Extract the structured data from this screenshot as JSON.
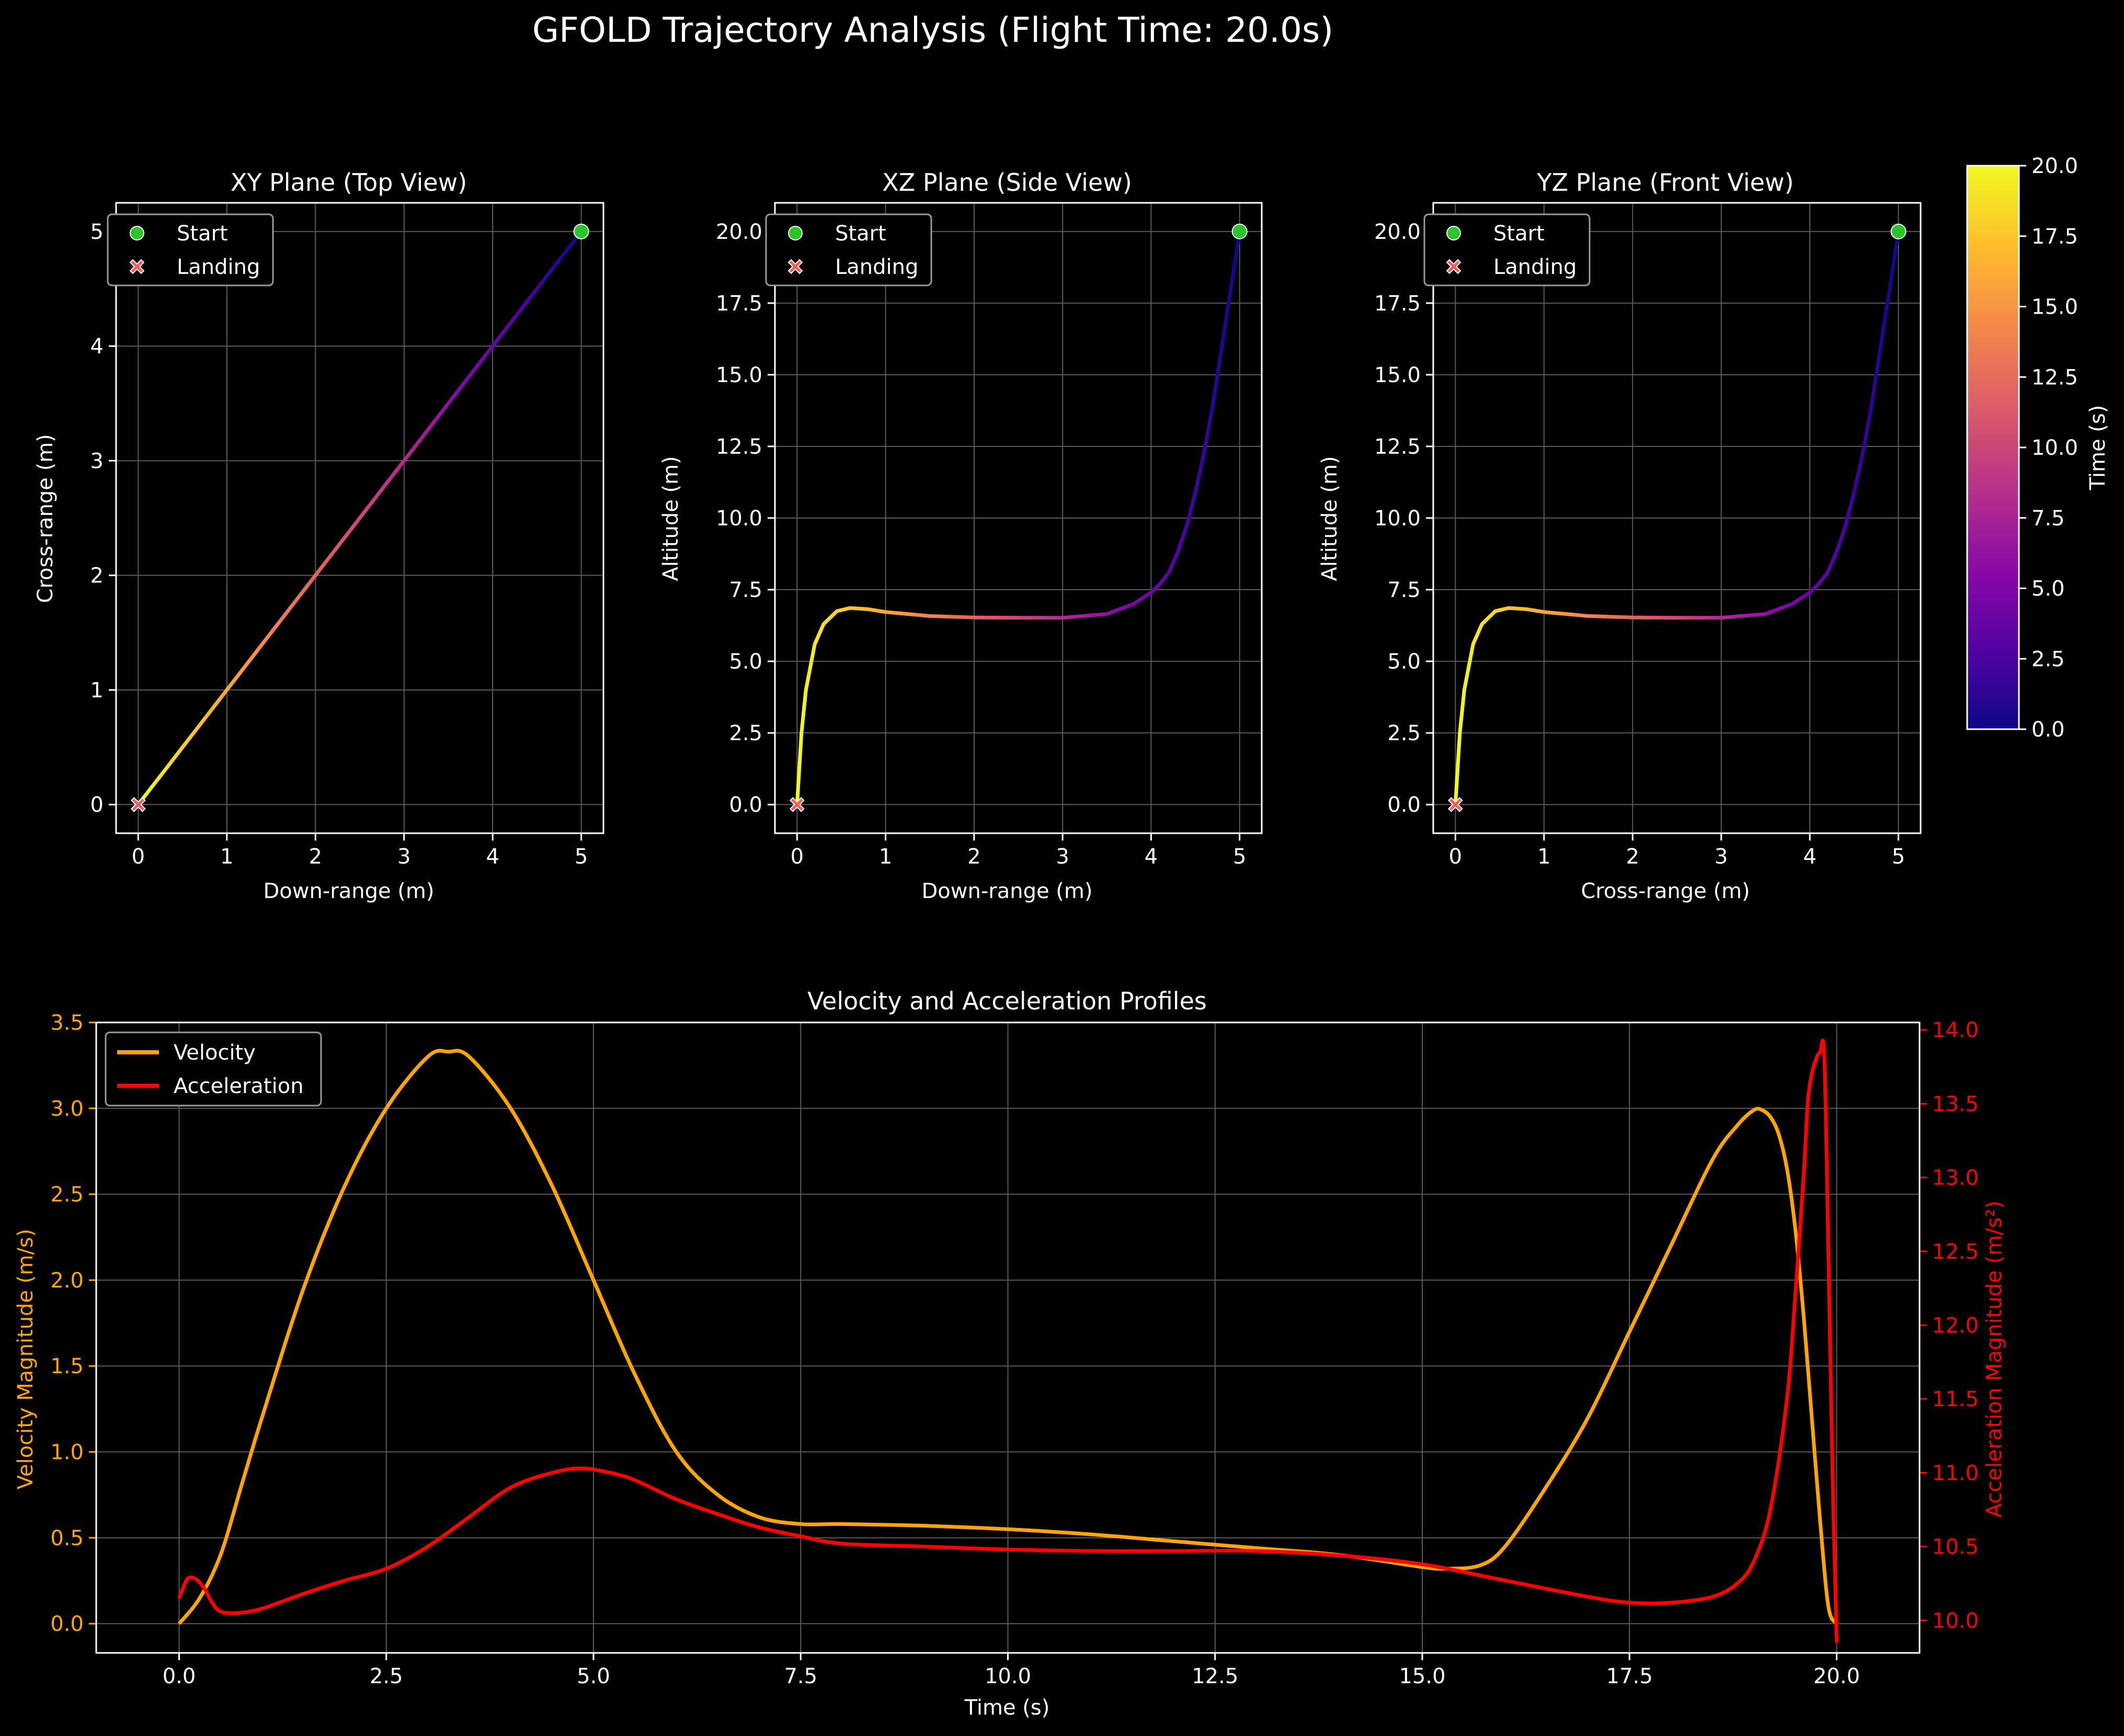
{
  "figure": {
    "title": "GFOLD Trajectory Analysis (Flight Time: 20.0s)",
    "background": "#000000",
    "text_color": "#ffffff",
    "grid_color": "#5a5a5a"
  },
  "legend_top": {
    "start_label": "Start",
    "landing_label": "Landing",
    "start_color": "#2bc42b",
    "landing_color": "#ff5a5a"
  },
  "colorbar": {
    "label": "Time (s)",
    "range": [
      0.0,
      20.0
    ],
    "ticks": [
      "0.0",
      "2.5",
      "5.0",
      "7.5",
      "10.0",
      "12.5",
      "15.0",
      "17.5",
      "20.0"
    ],
    "colormap": "plasma",
    "colors": [
      "#0d0887",
      "#5302a3",
      "#8b0aa5",
      "#b83289",
      "#db5c68",
      "#f48849",
      "#febd2a",
      "#f0f921"
    ]
  },
  "chart_data": [
    {
      "type": "line",
      "title": "XY Plane (Top View)",
      "xlabel": "Down-range (m)",
      "ylabel": "Cross-range (m)",
      "xlim": [
        -0.25,
        5.25
      ],
      "ylim": [
        -0.25,
        5.25
      ],
      "xticks": [
        0,
        1,
        2,
        3,
        4,
        5
      ],
      "yticks": [
        0,
        1,
        2,
        3,
        4,
        5
      ],
      "xtick_labels": [
        "0",
        "1",
        "2",
        "3",
        "4",
        "5"
      ],
      "ytick_labels": [
        "0",
        "1",
        "2",
        "3",
        "4",
        "5"
      ],
      "grid": true,
      "legend": "top-left",
      "color_by": "time",
      "trajectory": {
        "x": [
          5.0,
          4.0,
          3.0,
          2.0,
          1.0,
          0.0
        ],
        "y": [
          5.0,
          4.0,
          3.0,
          2.0,
          1.0,
          0.0
        ],
        "t": [
          0,
          4,
          8,
          12,
          16,
          20
        ]
      },
      "start": [
        5,
        5
      ],
      "landing": [
        0,
        0
      ]
    },
    {
      "type": "line",
      "title": "XZ Plane (Side View)",
      "xlabel": "Down-range (m)",
      "ylabel": "Altitude (m)",
      "xlim": [
        -0.25,
        5.25
      ],
      "ylim": [
        -1.0,
        21.0
      ],
      "xticks": [
        0,
        1,
        2,
        3,
        4,
        5
      ],
      "yticks": [
        0,
        2.5,
        5,
        7.5,
        10,
        12.5,
        15,
        17.5,
        20
      ],
      "xtick_labels": [
        "0",
        "1",
        "2",
        "3",
        "4",
        "5"
      ],
      "ytick_labels": [
        "0.0",
        "2.5",
        "5.0",
        "7.5",
        "10.0",
        "12.5",
        "15.0",
        "17.5",
        "20.0"
      ],
      "grid": true,
      "legend": "top-left",
      "color_by": "time",
      "trajectory": {
        "x": [
          5.0,
          4.9,
          4.8,
          4.7,
          4.6,
          4.5,
          4.4,
          4.3,
          4.2,
          4.1,
          4.0,
          3.8,
          3.5,
          3.0,
          2.5,
          2.0,
          1.5,
          1.0,
          0.8,
          0.6,
          0.45,
          0.3,
          0.2,
          0.1,
          0.05,
          0.0
        ],
        "y": [
          20.0,
          18.0,
          16.0,
          14.0,
          12.3,
          10.9,
          9.7,
          8.8,
          8.1,
          7.7,
          7.4,
          7.0,
          6.65,
          6.52,
          6.52,
          6.53,
          6.58,
          6.72,
          6.82,
          6.86,
          6.75,
          6.3,
          5.6,
          4.0,
          2.5,
          0.0
        ],
        "t": [
          0.0,
          0.4,
          0.8,
          1.2,
          1.6,
          2.0,
          2.4,
          2.8,
          3.2,
          3.6,
          4.0,
          4.8,
          6.0,
          8.0,
          10.0,
          12.0,
          14.0,
          16.0,
          16.8,
          17.6,
          18.2,
          18.8,
          19.2,
          19.6,
          19.8,
          20.0
        ]
      },
      "start": [
        5,
        20
      ],
      "landing": [
        0,
        0
      ]
    },
    {
      "type": "line",
      "title": "YZ Plane (Front View)",
      "xlabel": "Cross-range (m)",
      "ylabel": "Altitude (m)",
      "xlim": [
        -0.25,
        5.25
      ],
      "ylim": [
        -1.0,
        21.0
      ],
      "xticks": [
        0,
        1,
        2,
        3,
        4,
        5
      ],
      "yticks": [
        0,
        2.5,
        5,
        7.5,
        10,
        12.5,
        15,
        17.5,
        20
      ],
      "xtick_labels": [
        "0",
        "1",
        "2",
        "3",
        "4",
        "5"
      ],
      "ytick_labels": [
        "0.0",
        "2.5",
        "5.0",
        "7.5",
        "10.0",
        "12.5",
        "15.0",
        "17.5",
        "20.0"
      ],
      "grid": true,
      "legend": "top-left",
      "color_by": "time",
      "trajectory": {
        "x": [
          5.0,
          4.9,
          4.8,
          4.7,
          4.6,
          4.5,
          4.4,
          4.3,
          4.2,
          4.1,
          4.0,
          3.8,
          3.5,
          3.0,
          2.5,
          2.0,
          1.5,
          1.0,
          0.8,
          0.6,
          0.45,
          0.3,
          0.2,
          0.1,
          0.05,
          0.0
        ],
        "y": [
          20.0,
          18.0,
          16.0,
          14.0,
          12.3,
          10.9,
          9.7,
          8.8,
          8.1,
          7.7,
          7.4,
          7.0,
          6.65,
          6.52,
          6.52,
          6.53,
          6.58,
          6.72,
          6.82,
          6.86,
          6.75,
          6.3,
          5.6,
          4.0,
          2.5,
          0.0
        ],
        "t": [
          0.0,
          0.4,
          0.8,
          1.2,
          1.6,
          2.0,
          2.4,
          2.8,
          3.2,
          3.6,
          4.0,
          4.8,
          6.0,
          8.0,
          10.0,
          12.0,
          14.0,
          16.0,
          16.8,
          17.6,
          18.2,
          18.8,
          19.2,
          19.6,
          19.8,
          20.0
        ]
      },
      "start": [
        5,
        20
      ],
      "landing": [
        0,
        0
      ]
    },
    {
      "type": "line",
      "title": "Velocity and Acceleration Profiles",
      "xlabel": "Time (s)",
      "ylabel": "Velocity Magnitude (m/s)",
      "y2label": "Acceleration Magnitude (m/s²)",
      "xlim": [
        -1.0,
        21.0
      ],
      "ylim": [
        -0.17,
        3.5
      ],
      "y2lim": [
        9.78,
        14.05
      ],
      "xticks": [
        0,
        2.5,
        5,
        7.5,
        10,
        12.5,
        15,
        17.5,
        20
      ],
      "yticks": [
        0,
        0.5,
        1,
        1.5,
        2,
        2.5,
        3,
        3.5
      ],
      "y2ticks": [
        10,
        10.5,
        11,
        11.5,
        12,
        12.5,
        13,
        13.5,
        14
      ],
      "xtick_labels": [
        "0.0",
        "2.5",
        "5.0",
        "7.5",
        "10.0",
        "12.5",
        "15.0",
        "17.5",
        "20.0"
      ],
      "ytick_labels": [
        "0.0",
        "0.5",
        "1.0",
        "1.5",
        "2.0",
        "2.5",
        "3.0",
        "3.5"
      ],
      "y2tick_labels": [
        "10.0",
        "10.5",
        "11.0",
        "11.5",
        "12.0",
        "12.5",
        "13.0",
        "13.5",
        "14.0"
      ],
      "grid": true,
      "legend": "top-left",
      "series": [
        {
          "name": "Velocity",
          "color": "#ffa500",
          "axis": "left",
          "x": [
            0,
            0.25,
            0.5,
            0.75,
            1.0,
            1.5,
            2.0,
            2.5,
            3.0,
            3.25,
            3.5,
            4.0,
            4.5,
            5.0,
            5.5,
            6.0,
            6.5,
            7.0,
            7.5,
            8.0,
            9.0,
            10.0,
            11.0,
            12.0,
            13.0,
            14.0,
            15.0,
            15.3,
            15.7,
            16.0,
            16.5,
            17.0,
            17.5,
            18.0,
            18.5,
            18.8,
            19.0,
            19.1,
            19.2,
            19.3,
            19.4,
            19.5,
            19.6,
            19.7,
            19.8,
            19.9,
            20.0
          ],
          "y": [
            0.0,
            0.15,
            0.4,
            0.8,
            1.2,
            1.95,
            2.55,
            3.0,
            3.3,
            3.33,
            3.3,
            3.0,
            2.55,
            2.0,
            1.45,
            1.0,
            0.75,
            0.62,
            0.58,
            0.58,
            0.57,
            0.55,
            0.52,
            0.48,
            0.44,
            0.4,
            0.33,
            0.32,
            0.34,
            0.45,
            0.8,
            1.2,
            1.7,
            2.2,
            2.7,
            2.9,
            2.99,
            2.99,
            2.95,
            2.85,
            2.65,
            2.3,
            1.8,
            1.2,
            0.6,
            0.1,
            0.0
          ]
        },
        {
          "name": "Acceleration",
          "color": "#ff0000",
          "axis": "right",
          "x": [
            0,
            0.1,
            0.2,
            0.3,
            0.4,
            0.5,
            0.7,
            1.0,
            1.5,
            2.0,
            2.5,
            3.0,
            3.5,
            4.0,
            4.5,
            4.85,
            5.2,
            5.5,
            6.0,
            6.5,
            7.0,
            7.5,
            8.0,
            9.0,
            10.0,
            11.0,
            12.0,
            13.0,
            14.0,
            15.0,
            16.0,
            17.0,
            17.5,
            18.0,
            18.5,
            18.8,
            19.0,
            19.2,
            19.4,
            19.5,
            19.6,
            19.65,
            19.7,
            19.75,
            19.8,
            19.85,
            19.9,
            19.95,
            20.0
          ],
          "y": [
            10.15,
            10.28,
            10.28,
            10.22,
            10.12,
            10.06,
            10.05,
            10.08,
            10.18,
            10.27,
            10.35,
            10.5,
            10.7,
            10.9,
            11.0,
            11.03,
            11.0,
            10.95,
            10.82,
            10.72,
            10.63,
            10.57,
            10.52,
            10.5,
            10.48,
            10.47,
            10.47,
            10.47,
            10.44,
            10.38,
            10.27,
            10.16,
            10.12,
            10.12,
            10.16,
            10.25,
            10.4,
            10.75,
            11.5,
            12.2,
            13.0,
            13.5,
            13.7,
            13.8,
            13.85,
            13.82,
            12.5,
            11.0,
            9.85
          ]
        }
      ]
    }
  ]
}
